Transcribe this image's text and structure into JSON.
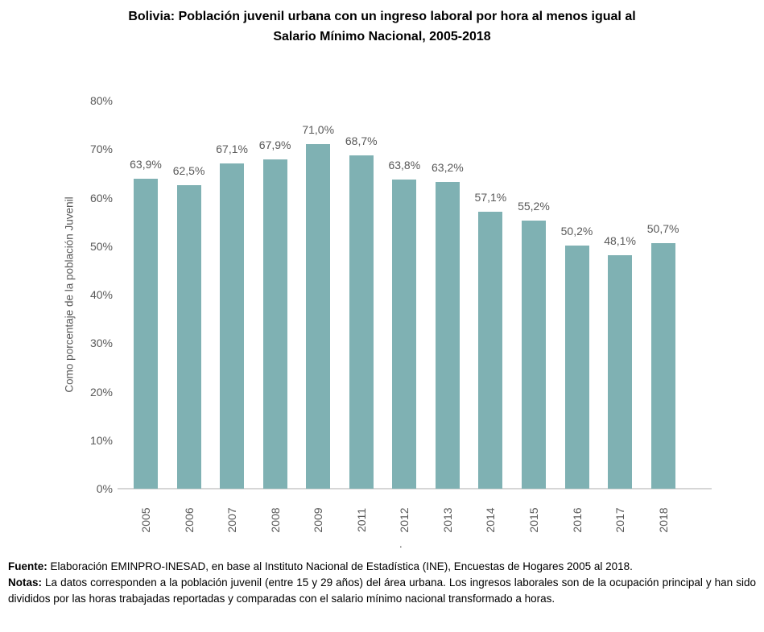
{
  "title": {
    "line1": "Bolivia: Población juvenil urbana con un ingreso laboral por hora al menos igual al",
    "line2": "Salario Mínimo Nacional, 2005-2018"
  },
  "chart_data": {
    "type": "bar",
    "title": "Bolivia: Población juvenil urbana con un ingreso laboral por hora al menos igual al Salario Mínimo Nacional, 2005-2018",
    "categories": [
      "2005",
      "2006",
      "2007",
      "2008",
      "2009",
      "2011",
      "2012",
      "2013",
      "2014",
      "2015",
      "2016",
      "2017",
      "2018"
    ],
    "values": [
      63.9,
      62.5,
      67.1,
      67.9,
      71.0,
      68.7,
      63.8,
      63.2,
      57.1,
      55.2,
      50.2,
      48.1,
      50.7
    ],
    "value_labels": [
      "63,9%",
      "62,5%",
      "67,1%",
      "67,9%",
      "71,0%",
      "68,7%",
      "63,8%",
      "63,2%",
      "57,1%",
      "55,2%",
      "50,2%",
      "48,1%",
      "50,7%"
    ],
    "xlabel": "",
    "ylabel": "Como porcentaje de la población Juvenil",
    "ylim": [
      0,
      80
    ],
    "yticks": [
      "0%",
      "10%",
      "20%",
      "30%",
      "40%",
      "50%",
      "60%",
      "70%",
      "80%"
    ],
    "grid": false,
    "legend": null,
    "bar_color": "#7FB1B3",
    "label_color": "#595959",
    "axis_line_color": "#D6D6D6"
  },
  "footer": {
    "dot": ".",
    "fuente_label": "Fuente:",
    "fuente_text": " Elaboración EMINPRO-INESAD, en base al Instituto Nacional de Estadística (INE), Encuestas de Hogares 2005 al 2018.",
    "notas_label": "Notas:",
    "notas_text": " La datos corresponden a la población juvenil (entre 15 y 29 años) del área urbana. Los ingresos laborales son de la ocupación principal y han sido divididos por las horas trabajadas reportadas y comparadas con el salario mínimo nacional transformado a horas."
  }
}
